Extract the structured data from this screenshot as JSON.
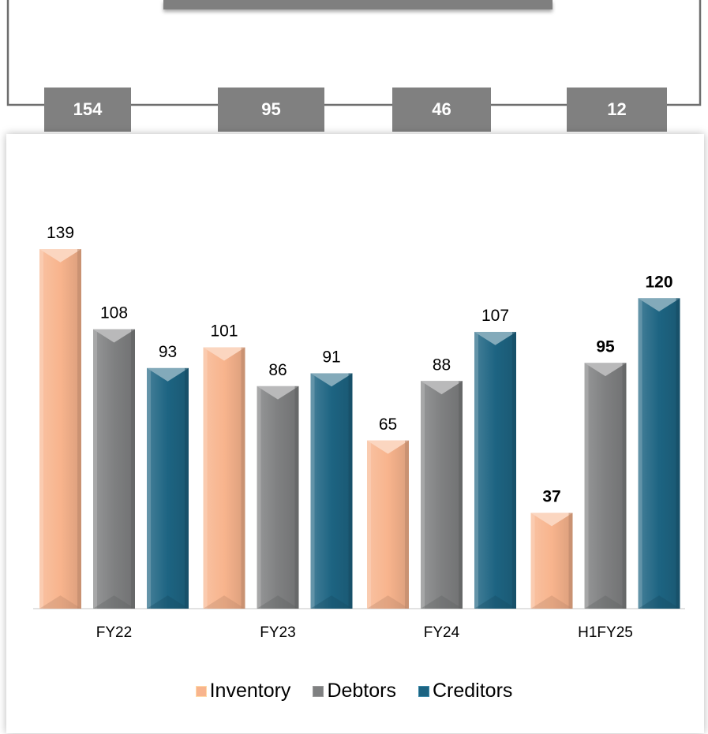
{
  "top_boxes": [
    "154",
    "95",
    "46",
    "12"
  ],
  "chart_data": {
    "type": "bar",
    "categories": [
      "FY22",
      "FY23",
      "FY24",
      "H1FY25"
    ],
    "series": [
      {
        "name": "Inventory",
        "values": [
          139,
          101,
          65,
          37
        ],
        "color": "#f8b48d"
      },
      {
        "name": "Debtors",
        "values": [
          108,
          86,
          88,
          95
        ],
        "color": "#7f8081"
      },
      {
        "name": "Creditors",
        "values": [
          93,
          91,
          107,
          120
        ],
        "color": "#1d6482"
      }
    ],
    "bold_category": "H1FY25",
    "ylim": [
      0,
      139
    ],
    "title": "",
    "xlabel": "",
    "ylabel": "",
    "grid": false,
    "legend_position": "bottom"
  }
}
